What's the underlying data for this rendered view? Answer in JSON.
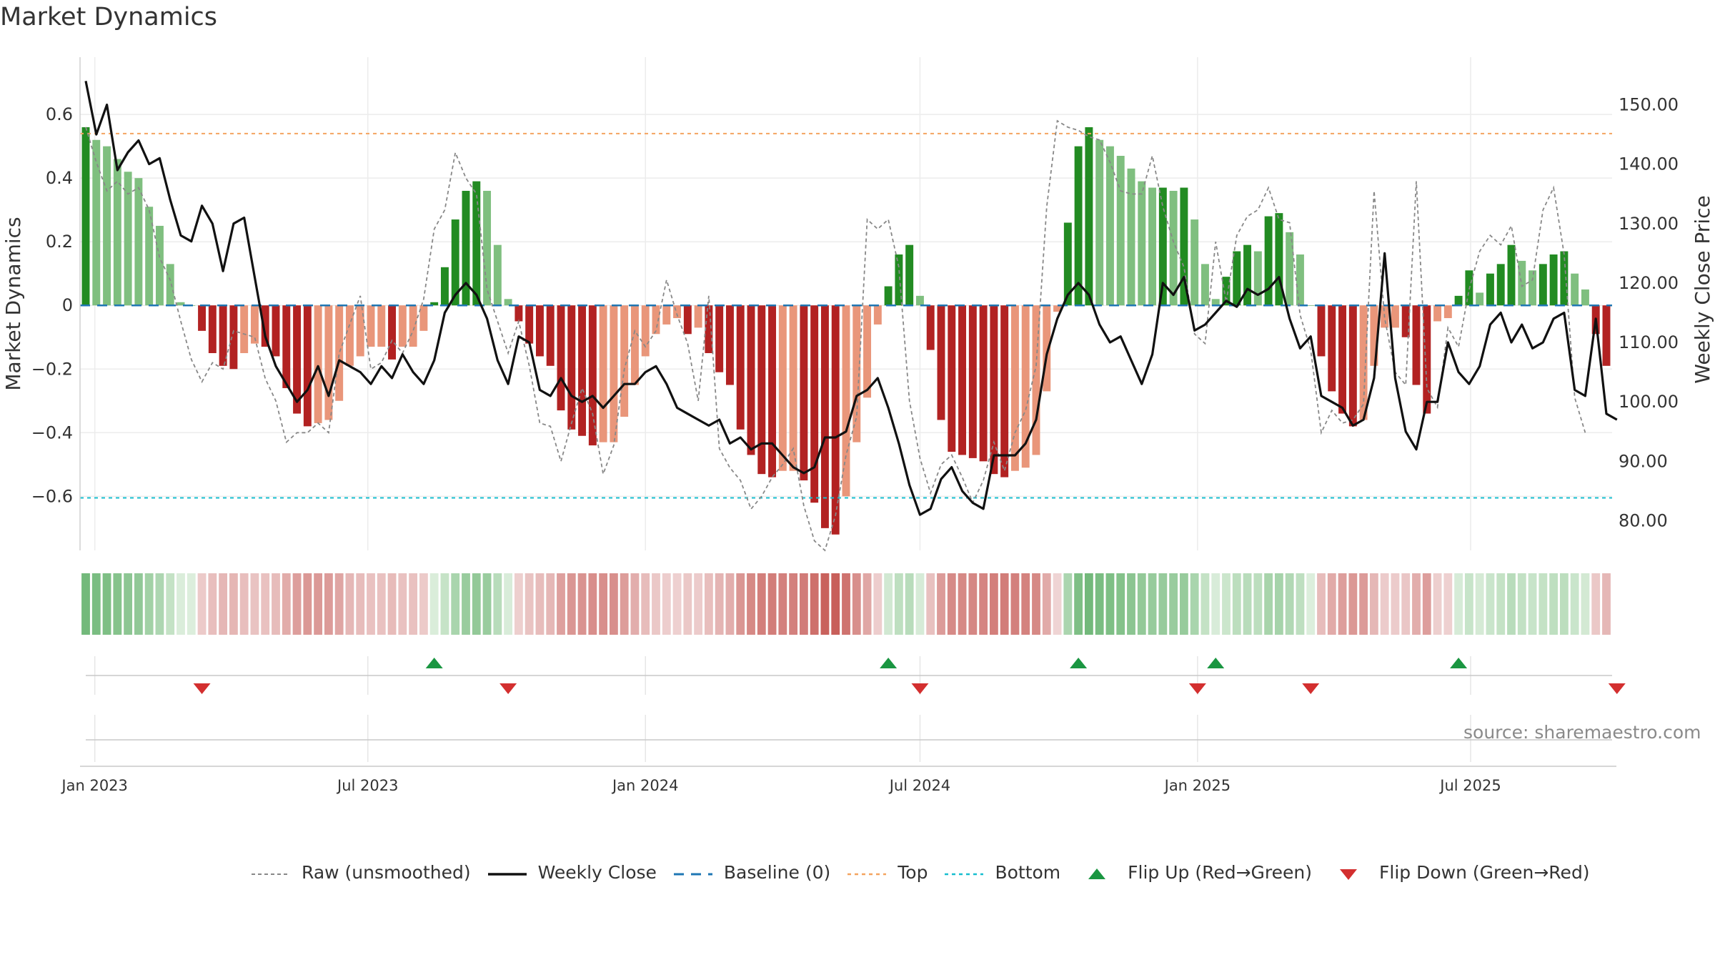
{
  "title": "Market Dynamics",
  "source": "source: sharemaestro.com",
  "colors": {
    "strong_green": "#228b22",
    "light_green": "#7fbf7f",
    "strong_red": "#b22222",
    "light_red": "#e9967a",
    "raw": "#888888",
    "close": "#111111",
    "baseline": "#1f77b4",
    "top": "#f4a460",
    "bottom": "#17becf",
    "flip_up": "#1a9641",
    "flip_down": "#d32f2f"
  },
  "legend": [
    {
      "key": "raw",
      "label": "Raw (unsmoothed)"
    },
    {
      "key": "close",
      "label": "Weekly Close"
    },
    {
      "key": "baseline",
      "label": "Baseline (0)"
    },
    {
      "key": "top",
      "label": "Top"
    },
    {
      "key": "bottom",
      "label": "Bottom"
    },
    {
      "key": "flip_up",
      "label": "Flip Up (Red→Green)"
    },
    {
      "key": "flip_down",
      "label": "Flip Down (Green→Red)"
    }
  ],
  "chart_data": {
    "type": "bar",
    "ylabel": "Market Dynamics",
    "y2label": "Weekly Close Price",
    "ylim": [
      -0.77,
      0.78
    ],
    "y2lim": [
      75,
      158
    ],
    "yticks": [
      -0.6,
      -0.4,
      -0.2,
      0,
      0.2,
      0.4,
      0.6
    ],
    "ytick_labels": [
      "−0.6",
      "−0.4",
      "−0.2",
      "0",
      "0.2",
      "0.4",
      "0.6"
    ],
    "y2ticks": [
      80,
      90,
      100,
      110,
      120,
      130,
      140,
      150
    ],
    "y2tick_labels": [
      "80.00",
      "90.00",
      "100.00",
      "110.00",
      "120.00",
      "130.00",
      "140.00",
      "150.00"
    ],
    "x_start": "2022-12-26",
    "week_interval_days": 7,
    "xtick_dates": [
      "2023-01-01",
      "2023-07-01",
      "2024-01-01",
      "2024-07-01",
      "2025-01-01",
      "2025-07-01"
    ],
    "xtick_labels": [
      "Jan 2023",
      "Jul 2023",
      "Jan 2024",
      "Jul 2024",
      "Jan 2025",
      "Jul 2025"
    ],
    "top_level": 0.54,
    "bottom_level": -0.605,
    "baseline": 0,
    "grid": true,
    "legend_position": "bottom",
    "smoothed": [
      0.56,
      0.52,
      0.5,
      0.46,
      0.42,
      0.4,
      0.31,
      0.25,
      0.13,
      0.01,
      0,
      -0.08,
      -0.15,
      -0.19,
      -0.2,
      -0.15,
      -0.12,
      -0.13,
      -0.16,
      -0.26,
      -0.34,
      -0.38,
      -0.37,
      -0.36,
      -0.3,
      -0.19,
      -0.16,
      -0.13,
      -0.13,
      -0.17,
      -0.13,
      -0.13,
      -0.08,
      0.01,
      0.12,
      0.27,
      0.36,
      0.39,
      0.36,
      0.19,
      0.02,
      -0.05,
      -0.12,
      -0.16,
      -0.19,
      -0.33,
      -0.39,
      -0.41,
      -0.44,
      -0.43,
      -0.43,
      -0.35,
      -0.25,
      -0.16,
      -0.09,
      -0.06,
      -0.04,
      -0.09,
      -0.07,
      -0.15,
      -0.21,
      -0.25,
      -0.39,
      -0.47,
      -0.53,
      -0.54,
      -0.52,
      -0.52,
      -0.55,
      -0.62,
      -0.7,
      -0.72,
      -0.6,
      -0.43,
      -0.29,
      -0.06,
      0.06,
      0.16,
      0.19,
      0.03,
      -0.14,
      -0.36,
      -0.46,
      -0.47,
      -0.48,
      -0.49,
      -0.53,
      -0.54,
      -0.52,
      -0.51,
      -0.47,
      -0.27,
      -0.02,
      0.26,
      0.5,
      0.56,
      0.52,
      0.5,
      0.47,
      0.43,
      0.39,
      0.37,
      0.37,
      0.36,
      0.37,
      0.27,
      0.13,
      0.02,
      0.09,
      0.17,
      0.19,
      0.17,
      0.28,
      0.29,
      0.23,
      0.16,
      0,
      -0.16,
      -0.27,
      -0.34,
      -0.38,
      -0.36,
      -0.19,
      -0.07,
      -0.07,
      -0.1,
      -0.25,
      -0.34,
      -0.05,
      -0.04,
      0.03,
      0.11,
      0.04,
      0.1,
      0.13,
      0.19,
      0.14,
      0.11,
      0.13,
      0.16,
      0.17,
      0.1,
      0.05,
      -0.09,
      -0.19
    ],
    "raw": [
      0.56,
      0.45,
      0.36,
      0.39,
      0.35,
      0.37,
      0.3,
      0.15,
      0.08,
      -0.05,
      -0.17,
      -0.24,
      -0.18,
      -0.2,
      -0.08,
      -0.09,
      -0.1,
      -0.23,
      -0.3,
      -0.43,
      -0.4,
      -0.4,
      -0.37,
      -0.4,
      -0.15,
      -0.06,
      0.03,
      -0.2,
      -0.18,
      -0.11,
      -0.15,
      -0.08,
      0.02,
      0.24,
      0.3,
      0.48,
      0.4,
      0.35,
      0.05,
      -0.05,
      -0.15,
      -0.05,
      -0.19,
      -0.37,
      -0.38,
      -0.49,
      -0.37,
      -0.26,
      -0.34,
      -0.53,
      -0.44,
      -0.2,
      -0.08,
      -0.13,
      -0.08,
      0.08,
      -0.03,
      -0.12,
      -0.3,
      0.03,
      -0.45,
      -0.51,
      -0.55,
      -0.64,
      -0.6,
      -0.54,
      -0.5,
      -0.45,
      -0.63,
      -0.74,
      -0.77,
      -0.66,
      -0.47,
      -0.35,
      0.27,
      0.24,
      0.27,
      0.12,
      -0.3,
      -0.48,
      -0.59,
      -0.5,
      -0.47,
      -0.54,
      -0.62,
      -0.55,
      -0.43,
      -0.52,
      -0.4,
      -0.33,
      -0.19,
      0.31,
      0.58,
      0.56,
      0.55,
      0.53,
      0.52,
      0.45,
      0.36,
      0.35,
      0.35,
      0.47,
      0.31,
      0.2,
      0.12,
      -0.09,
      -0.12,
      0.2,
      0.01,
      0.22,
      0.28,
      0.3,
      0.37,
      0.27,
      0.26,
      -0.03,
      -0.14,
      -0.4,
      -0.33,
      -0.37,
      -0.36,
      -0.31,
      0.36,
      -0.04,
      -0.21,
      -0.25,
      0.39,
      -0.26,
      -0.32,
      -0.07,
      -0.13,
      0.05,
      0.17,
      0.22,
      0.19,
      0.25,
      0.06,
      0.08,
      0.3,
      0.37,
      0.16,
      -0.29,
      -0.4
    ],
    "close": [
      154,
      145,
      150,
      139,
      142,
      144,
      140,
      141,
      134,
      128,
      127,
      133,
      130,
      122,
      130,
      131,
      121,
      111,
      106,
      103,
      100,
      102,
      106,
      101,
      107,
      106,
      105,
      103,
      106,
      104,
      108,
      105,
      103,
      107,
      115,
      118,
      120,
      118,
      114,
      107,
      103,
      111,
      110,
      102,
      101,
      104,
      101,
      100,
      101,
      99,
      101,
      103,
      103,
      105,
      106,
      103,
      99,
      98,
      97,
      96,
      97,
      93,
      94,
      92,
      93,
      93,
      91,
      89,
      88,
      89,
      94,
      94,
      95,
      101,
      102,
      104,
      99,
      93,
      86,
      81,
      82,
      87,
      89,
      85,
      83,
      82,
      91,
      91,
      91,
      93,
      97,
      108,
      114,
      118,
      120,
      118,
      113,
      110,
      111,
      107,
      103,
      108,
      120,
      118,
      121,
      112,
      113,
      115,
      117,
      116,
      119,
      118,
      119,
      121,
      114,
      109,
      111,
      101,
      100,
      99,
      96,
      97,
      104,
      125,
      104,
      95,
      92,
      100,
      100,
      110,
      105,
      103,
      106,
      113,
      115,
      110,
      113,
      109,
      110,
      114,
      115,
      102,
      101,
      114,
      98,
      97
    ],
    "flip_up_dates": [
      "2023-08-14",
      "2024-06-10",
      "2024-10-14",
      "2025-01-13",
      "2025-06-23"
    ],
    "flip_down_dates": [
      "2023-03-13",
      "2023-10-02",
      "2024-07-01",
      "2025-01-01",
      "2025-03-17",
      "2025-10-06"
    ]
  }
}
